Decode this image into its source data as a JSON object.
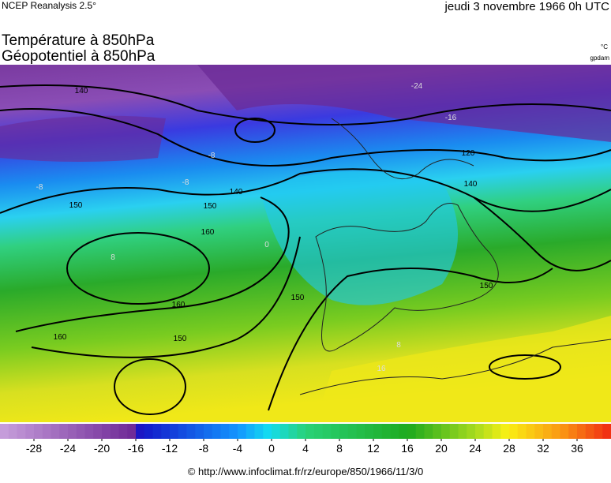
{
  "header": {
    "source": "NCEP Reanalysis 2.5°",
    "date": "jeudi 3 novembre 1966 0h UTC"
  },
  "titles": [
    "Température à 850hPa",
    "Géopotentiel à 850hPa"
  ],
  "units": {
    "temperature": "°C",
    "geopotential": "gpdam"
  },
  "contour_labels": [
    "140",
    "150",
    "160",
    "160",
    "160",
    "150",
    "150",
    "140",
    "150",
    "150",
    "120",
    "140",
    "-24",
    "-16",
    "-8",
    "-8",
    "0",
    "8",
    "8",
    "16",
    "-8"
  ],
  "colorbar": {
    "range": [
      -32,
      40
    ],
    "ticks": [
      -28,
      -24,
      -20,
      -16,
      -12,
      -8,
      -4,
      0,
      4,
      8,
      12,
      16,
      20,
      24,
      28,
      32,
      36
    ]
  },
  "footer": "© http://www.infoclimat.fr/rz/europe/850/1966/11/3/0"
}
